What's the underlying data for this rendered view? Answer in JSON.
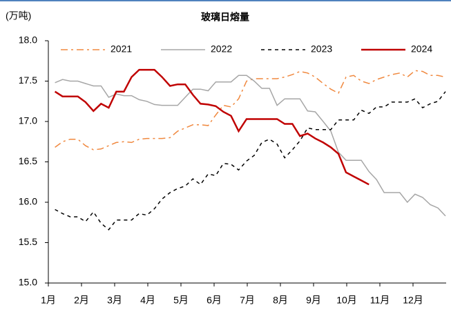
{
  "chart_data": {
    "type": "line",
    "title": "玻璃日熔量",
    "y_label": "(万吨)",
    "x": [
      0.2,
      0.43,
      0.66,
      0.89,
      1.12,
      1.36,
      1.59,
      1.82,
      2.05,
      2.28,
      2.51,
      2.74,
      2.97,
      3.2,
      3.43,
      3.67,
      3.9,
      4.13,
      4.36,
      4.59,
      4.82,
      5.05,
      5.28,
      5.51,
      5.74,
      5.98,
      6.21,
      6.44,
      6.67,
      6.9,
      7.13,
      7.36,
      7.59,
      7.82,
      8.05,
      8.29,
      8.52,
      8.75,
      8.98,
      9.21,
      9.44,
      9.67,
      9.9,
      10.13,
      10.36,
      10.6,
      10.83,
      11.06,
      11.29,
      11.52,
      11.75,
      11.98
    ],
    "series": [
      {
        "name": "2021",
        "color": "#F0883E",
        "dash": "dashdot",
        "values": [
          16.68,
          16.75,
          16.78,
          16.78,
          16.7,
          16.65,
          16.66,
          16.7,
          16.74,
          16.75,
          16.74,
          16.78,
          16.79,
          16.79,
          16.79,
          16.8,
          16.88,
          16.92,
          16.96,
          16.96,
          16.95,
          17.08,
          17.2,
          17.18,
          17.28,
          17.5,
          17.53,
          17.53,
          17.53,
          17.53,
          17.55,
          17.58,
          17.62,
          17.6,
          17.55,
          17.47,
          17.4,
          17.35,
          17.55,
          17.57,
          17.5,
          17.47,
          17.52,
          17.55,
          17.58,
          17.6,
          17.55,
          17.63,
          17.62,
          17.57,
          17.57,
          17.55
        ]
      },
      {
        "name": "2022",
        "color": "#A6A6A6",
        "dash": "solid",
        "values": [
          17.48,
          17.52,
          17.5,
          17.5,
          17.47,
          17.44,
          17.44,
          17.3,
          17.34,
          17.32,
          17.32,
          17.27,
          17.25,
          17.21,
          17.2,
          17.2,
          17.2,
          17.3,
          17.4,
          17.4,
          17.38,
          17.49,
          17.49,
          17.49,
          17.57,
          17.57,
          17.5,
          17.41,
          17.41,
          17.2,
          17.28,
          17.28,
          17.28,
          17.13,
          17.12,
          17.0,
          16.88,
          16.62,
          16.52,
          16.52,
          16.52,
          16.38,
          16.28,
          16.12,
          16.12,
          16.12,
          16.0,
          16.1,
          16.06,
          15.97,
          15.93,
          15.83
        ]
      },
      {
        "name": "2023",
        "color": "#000000",
        "dash": "dashed",
        "values": [
          15.91,
          15.86,
          15.82,
          15.82,
          15.76,
          15.88,
          15.74,
          15.66,
          15.78,
          15.78,
          15.78,
          15.86,
          15.84,
          15.92,
          16.04,
          16.12,
          16.17,
          16.2,
          16.29,
          16.22,
          16.35,
          16.33,
          16.48,
          16.47,
          16.4,
          16.51,
          16.58,
          16.74,
          16.78,
          16.72,
          16.55,
          16.65,
          16.76,
          16.92,
          16.9,
          16.9,
          16.9,
          17.02,
          17.02,
          17.02,
          17.14,
          17.1,
          17.18,
          17.18,
          17.24,
          17.24,
          17.24,
          17.28,
          17.17,
          17.22,
          17.25,
          17.37
        ]
      },
      {
        "name": "2024",
        "color": "#C00000",
        "dash": "solid",
        "width": 2.5,
        "values": [
          17.37,
          17.31,
          17.31,
          17.31,
          17.24,
          17.13,
          17.22,
          17.17,
          17.37,
          17.37,
          17.55,
          17.64,
          17.64,
          17.64,
          17.55,
          17.44,
          17.46,
          17.46,
          17.33,
          17.22,
          17.21,
          17.19,
          17.12,
          17.07,
          16.88,
          17.03,
          17.03,
          17.03,
          17.03,
          17.03,
          16.97,
          16.97,
          16.82,
          16.85,
          16.79,
          16.74,
          16.68,
          16.6,
          16.37,
          16.32,
          16.27,
          16.22,
          null,
          null,
          null,
          null,
          null,
          null,
          null,
          null,
          null,
          null
        ]
      }
    ],
    "xlim": [
      0,
      12
    ],
    "xticks": [
      {
        "value": 0,
        "label": "1月"
      },
      {
        "value": 1,
        "label": "2月"
      },
      {
        "value": 2,
        "label": "3月"
      },
      {
        "value": 3,
        "label": "4月"
      },
      {
        "value": 4,
        "label": "5月"
      },
      {
        "value": 5,
        "label": "6月"
      },
      {
        "value": 6,
        "label": "7月"
      },
      {
        "value": 7,
        "label": "8月"
      },
      {
        "value": 8,
        "label": "9月"
      },
      {
        "value": 9,
        "label": "10月"
      },
      {
        "value": 10,
        "label": "11月"
      },
      {
        "value": 11,
        "label": "12月"
      }
    ],
    "ylim": [
      15,
      18
    ],
    "yticks": [
      {
        "value": 15,
        "label": "15.0"
      },
      {
        "value": 15.5,
        "label": "15.5"
      },
      {
        "value": 16,
        "label": "16.0"
      },
      {
        "value": 16.5,
        "label": "16.5"
      },
      {
        "value": 17,
        "label": "17.0"
      },
      {
        "value": 17.5,
        "label": "17.5"
      },
      {
        "value": 18,
        "label": "18.0"
      }
    ],
    "legend": "top"
  }
}
